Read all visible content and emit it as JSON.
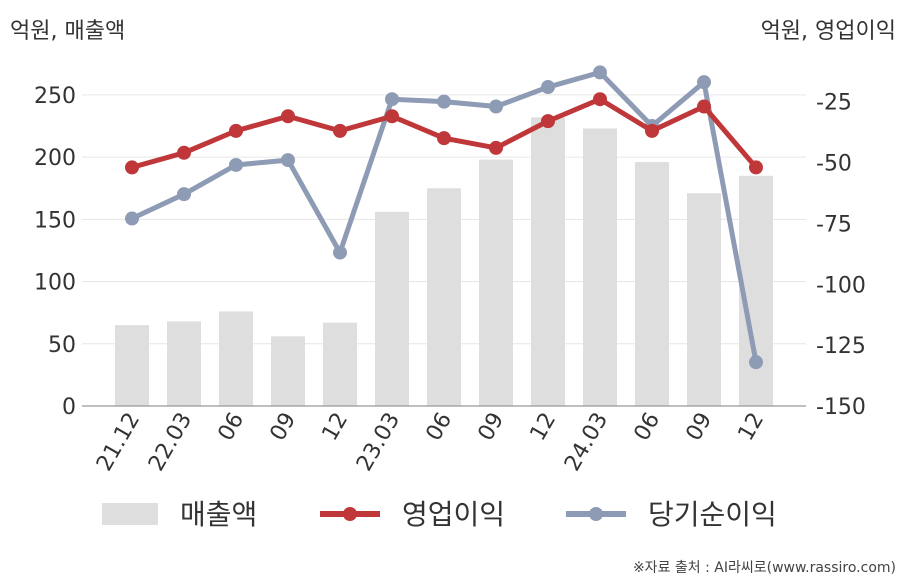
{
  "chart_data": {
    "type": "bar+line",
    "left_axis_title": "억원, 매출액",
    "right_axis_title": "억원, 영업이익",
    "categories": [
      "21.12",
      "22.03",
      "06",
      "09",
      "12",
      "23.03",
      "06",
      "09",
      "12",
      "24.03",
      "06",
      "09",
      "12"
    ],
    "left_axis": {
      "min": 0,
      "max": 270,
      "ticks": [
        0,
        50,
        100,
        150,
        200,
        250
      ]
    },
    "right_axis": {
      "min": -150,
      "max": -12,
      "ticks": [
        -150,
        -125,
        -100,
        -75,
        -50,
        -25
      ]
    },
    "series": [
      {
        "name": "매출액",
        "type": "bar",
        "axis": "left",
        "color": "#dedede",
        "values": [
          65,
          68,
          76,
          56,
          67,
          156,
          175,
          198,
          232,
          223,
          196,
          171,
          185
        ]
      },
      {
        "name": "영업이익",
        "type": "line",
        "axis": "right",
        "color": "#c0373a",
        "values": [
          -52,
          -46,
          -37,
          -31,
          -37,
          -31,
          -40,
          -44,
          -33,
          -24,
          -37,
          -27,
          -52
        ]
      },
      {
        "name": "당기순이익",
        "type": "line",
        "axis": "right",
        "color": "#8e9bb5",
        "values": [
          -73,
          -63,
          -51,
          -49,
          -87,
          -24,
          -25,
          -27,
          -19,
          -13,
          -35,
          -17,
          -132
        ]
      }
    ],
    "grid": true,
    "legend_position": "bottom"
  },
  "source_text": "※자료 출처 : AI라씨로(www.rassiro.com)"
}
